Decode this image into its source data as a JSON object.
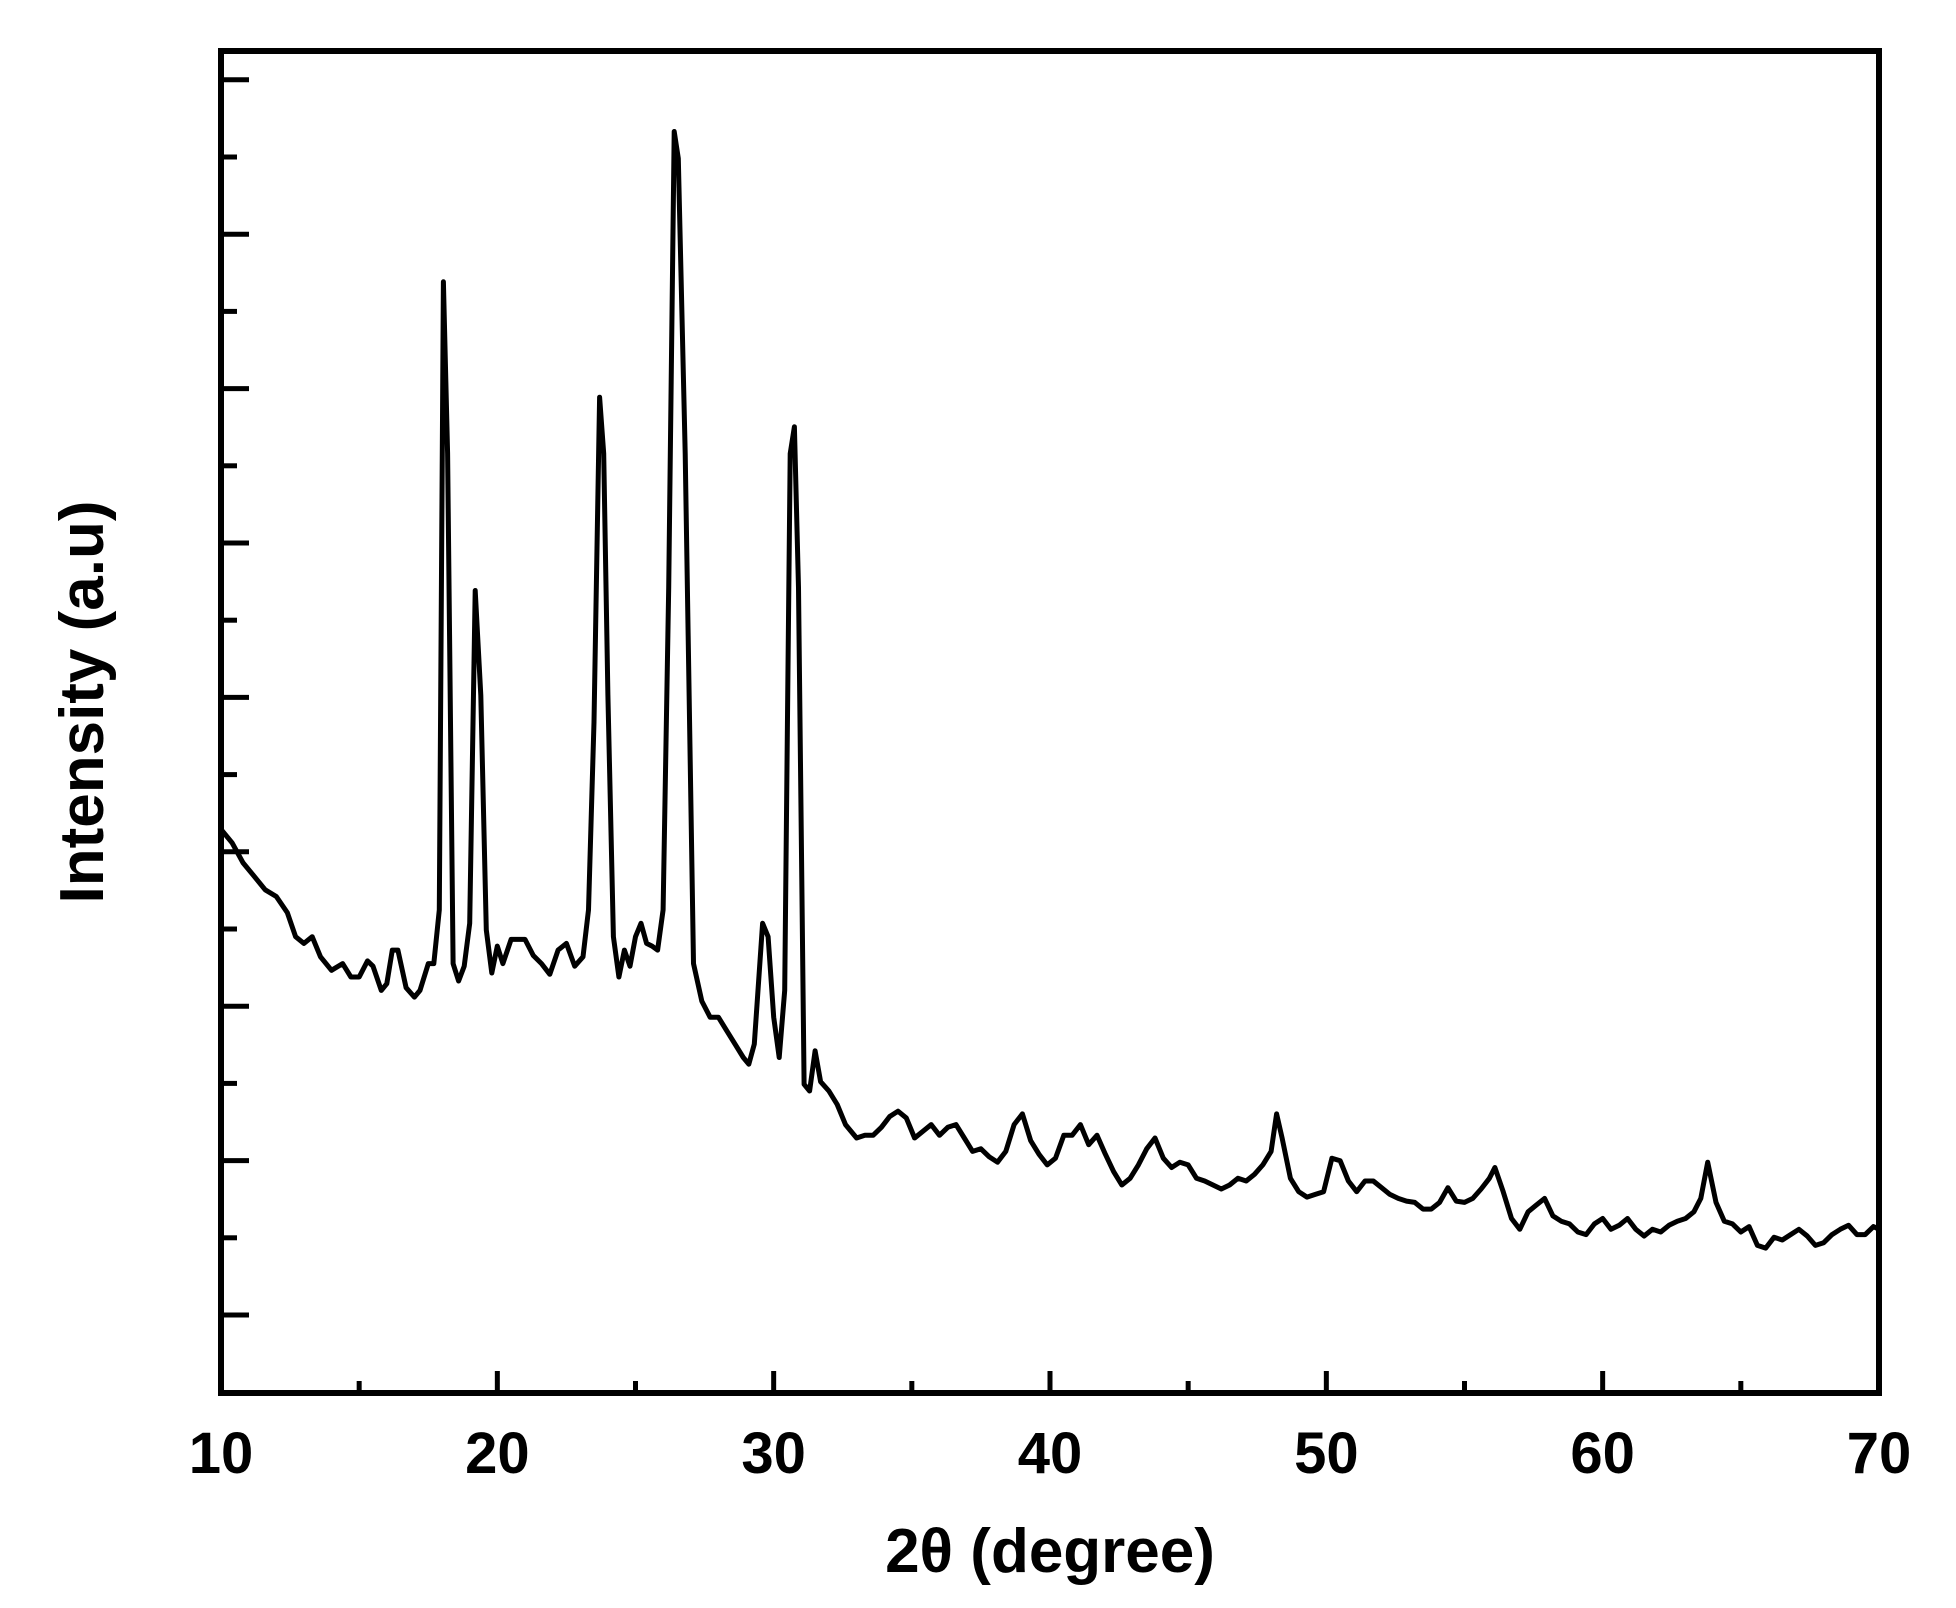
{
  "chart_data": {
    "type": "line",
    "title": "",
    "xlabel": "2θ (degree)",
    "ylabel": "Intensity (a.u)",
    "xlim": [
      10,
      70
    ],
    "ylim": [
      0,
      1000
    ],
    "x_ticks": [
      10,
      20,
      30,
      40,
      50,
      60,
      70
    ],
    "x_tick_labels": [
      "10",
      "20",
      "30",
      "40",
      "50",
      "60",
      "70"
    ],
    "y_tick_labels_shown": false,
    "grid": false,
    "legend": "none",
    "line_color": "#000000",
    "series": [
      {
        "values": [
          [
            10.0,
            420
          ],
          [
            10.4,
            410
          ],
          [
            10.8,
            395
          ],
          [
            11.2,
            385
          ],
          [
            11.6,
            375
          ],
          [
            12.0,
            370
          ],
          [
            12.4,
            358
          ],
          [
            12.7,
            340
          ],
          [
            13.0,
            335
          ],
          [
            13.3,
            340
          ],
          [
            13.6,
            325
          ],
          [
            14.0,
            315
          ],
          [
            14.4,
            320
          ],
          [
            14.7,
            310
          ],
          [
            15.0,
            310
          ],
          [
            15.3,
            322
          ],
          [
            15.5,
            318
          ],
          [
            15.8,
            300
          ],
          [
            16.0,
            305
          ],
          [
            16.2,
            330
          ],
          [
            16.4,
            330
          ],
          [
            16.7,
            302
          ],
          [
            17.0,
            295
          ],
          [
            17.2,
            300
          ],
          [
            17.5,
            320
          ],
          [
            17.7,
            320
          ],
          [
            17.9,
            360
          ],
          [
            18.05,
            828
          ],
          [
            18.2,
            700
          ],
          [
            18.4,
            320
          ],
          [
            18.6,
            307
          ],
          [
            18.8,
            318
          ],
          [
            19.0,
            350
          ],
          [
            19.2,
            598
          ],
          [
            19.4,
            520
          ],
          [
            19.6,
            345
          ],
          [
            19.8,
            313
          ],
          [
            20.0,
            333
          ],
          [
            20.2,
            320
          ],
          [
            20.5,
            338
          ],
          [
            20.8,
            338
          ],
          [
            21.0,
            338
          ],
          [
            21.3,
            326
          ],
          [
            21.6,
            320
          ],
          [
            21.9,
            312
          ],
          [
            22.2,
            330
          ],
          [
            22.5,
            335
          ],
          [
            22.8,
            318
          ],
          [
            23.1,
            325
          ],
          [
            23.3,
            360
          ],
          [
            23.5,
            500
          ],
          [
            23.7,
            742
          ],
          [
            23.85,
            700
          ],
          [
            24.0,
            520
          ],
          [
            24.2,
            340
          ],
          [
            24.4,
            310
          ],
          [
            24.6,
            330
          ],
          [
            24.8,
            318
          ],
          [
            25.0,
            340
          ],
          [
            25.2,
            350
          ],
          [
            25.4,
            335
          ],
          [
            25.6,
            333
          ],
          [
            25.8,
            330
          ],
          [
            26.0,
            360
          ],
          [
            26.2,
            600
          ],
          [
            26.4,
            940
          ],
          [
            26.55,
            920
          ],
          [
            26.8,
            700
          ],
          [
            27.1,
            320
          ],
          [
            27.4,
            292
          ],
          [
            27.7,
            280
          ],
          [
            28.0,
            280
          ],
          [
            28.3,
            270
          ],
          [
            28.6,
            260
          ],
          [
            28.9,
            250
          ],
          [
            29.1,
            245
          ],
          [
            29.3,
            260
          ],
          [
            29.6,
            350
          ],
          [
            29.8,
            340
          ],
          [
            30.0,
            280
          ],
          [
            30.2,
            250
          ],
          [
            30.4,
            300
          ],
          [
            30.6,
            700
          ],
          [
            30.75,
            720
          ],
          [
            30.9,
            600
          ],
          [
            31.1,
            230
          ],
          [
            31.3,
            225
          ],
          [
            31.5,
            255
          ],
          [
            31.7,
            232
          ],
          [
            32.0,
            225
          ],
          [
            32.3,
            215
          ],
          [
            32.6,
            200
          ],
          [
            33.0,
            190
          ],
          [
            33.3,
            192
          ],
          [
            33.6,
            192
          ],
          [
            33.9,
            198
          ],
          [
            34.2,
            206
          ],
          [
            34.5,
            210
          ],
          [
            34.8,
            205
          ],
          [
            35.1,
            190
          ],
          [
            35.4,
            195
          ],
          [
            35.7,
            200
          ],
          [
            36.0,
            192
          ],
          [
            36.3,
            198
          ],
          [
            36.6,
            200
          ],
          [
            36.9,
            190
          ],
          [
            37.2,
            180
          ],
          [
            37.5,
            182
          ],
          [
            37.8,
            176
          ],
          [
            38.1,
            172
          ],
          [
            38.4,
            180
          ],
          [
            38.7,
            200
          ],
          [
            39.0,
            208
          ],
          [
            39.3,
            188
          ],
          [
            39.6,
            178
          ],
          [
            39.9,
            170
          ],
          [
            40.2,
            175
          ],
          [
            40.5,
            192
          ],
          [
            40.8,
            192
          ],
          [
            41.1,
            200
          ],
          [
            41.4,
            185
          ],
          [
            41.7,
            192
          ],
          [
            42.0,
            178
          ],
          [
            42.3,
            165
          ],
          [
            42.6,
            155
          ],
          [
            42.9,
            160
          ],
          [
            43.2,
            170
          ],
          [
            43.5,
            182
          ],
          [
            43.8,
            190
          ],
          [
            44.1,
            175
          ],
          [
            44.4,
            168
          ],
          [
            44.7,
            172
          ],
          [
            45.0,
            170
          ],
          [
            45.3,
            160
          ],
          [
            45.6,
            158
          ],
          [
            45.9,
            155
          ],
          [
            46.2,
            152
          ],
          [
            46.5,
            155
          ],
          [
            46.8,
            160
          ],
          [
            47.1,
            158
          ],
          [
            47.4,
            163
          ],
          [
            47.7,
            170
          ],
          [
            48.0,
            180
          ],
          [
            48.2,
            208
          ],
          [
            48.4,
            190
          ],
          [
            48.7,
            160
          ],
          [
            49.0,
            150
          ],
          [
            49.3,
            146
          ],
          [
            49.6,
            148
          ],
          [
            49.9,
            150
          ],
          [
            50.2,
            175
          ],
          [
            50.5,
            173
          ],
          [
            50.8,
            158
          ],
          [
            51.1,
            150
          ],
          [
            51.4,
            158
          ],
          [
            51.7,
            158
          ],
          [
            52.0,
            153
          ],
          [
            52.3,
            148
          ],
          [
            52.6,
            145
          ],
          [
            52.9,
            143
          ],
          [
            53.2,
            142
          ],
          [
            53.5,
            137
          ],
          [
            53.8,
            137
          ],
          [
            54.1,
            142
          ],
          [
            54.4,
            153
          ],
          [
            54.7,
            143
          ],
          [
            55.0,
            142
          ],
          [
            55.3,
            145
          ],
          [
            55.6,
            152
          ],
          [
            55.9,
            160
          ],
          [
            56.1,
            168
          ],
          [
            56.4,
            150
          ],
          [
            56.7,
            130
          ],
          [
            57.0,
            122
          ],
          [
            57.3,
            135
          ],
          [
            57.6,
            140
          ],
          [
            57.9,
            145
          ],
          [
            58.2,
            132
          ],
          [
            58.5,
            128
          ],
          [
            58.8,
            126
          ],
          [
            59.1,
            120
          ],
          [
            59.4,
            118
          ],
          [
            59.7,
            126
          ],
          [
            60.0,
            130
          ],
          [
            60.3,
            122
          ],
          [
            60.6,
            125
          ],
          [
            60.9,
            130
          ],
          [
            61.2,
            122
          ],
          [
            61.5,
            117
          ],
          [
            61.8,
            122
          ],
          [
            62.1,
            120
          ],
          [
            62.4,
            125
          ],
          [
            62.7,
            128
          ],
          [
            63.0,
            130
          ],
          [
            63.3,
            135
          ],
          [
            63.55,
            145
          ],
          [
            63.8,
            172
          ],
          [
            64.1,
            142
          ],
          [
            64.4,
            128
          ],
          [
            64.7,
            126
          ],
          [
            65.0,
            120
          ],
          [
            65.3,
            124
          ],
          [
            65.6,
            110
          ],
          [
            65.9,
            108
          ],
          [
            66.2,
            116
          ],
          [
            66.5,
            114
          ],
          [
            66.8,
            118
          ],
          [
            67.1,
            122
          ],
          [
            67.4,
            117
          ],
          [
            67.7,
            110
          ],
          [
            68.0,
            112
          ],
          [
            68.3,
            118
          ],
          [
            68.6,
            122
          ],
          [
            68.9,
            125
          ],
          [
            69.2,
            118
          ],
          [
            69.5,
            118
          ],
          [
            69.8,
            124
          ],
          [
            70.0,
            122
          ]
        ]
      }
    ]
  }
}
